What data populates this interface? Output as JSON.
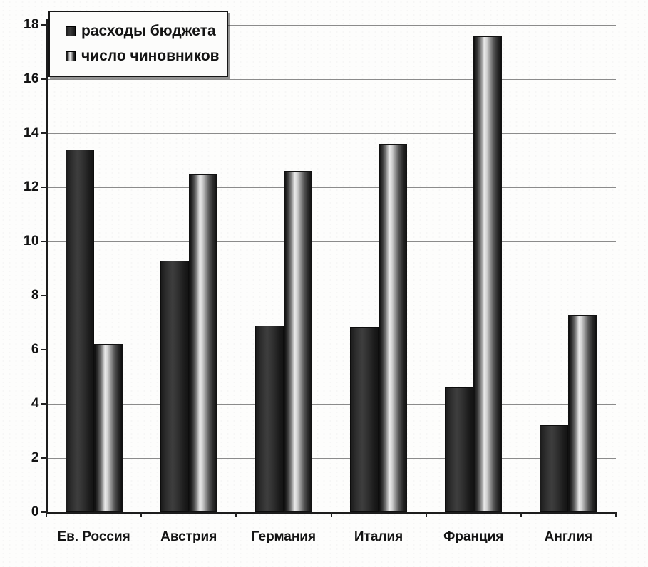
{
  "chart_data": {
    "type": "bar",
    "title": "",
    "xlabel": "",
    "ylabel": "",
    "categories": [
      "Ев. Россия",
      "Австрия",
      "Германия",
      "Италия",
      "Франция",
      "Англия"
    ],
    "series": [
      {
        "name": "расходы бюджета",
        "values": [
          13.4,
          9.3,
          6.9,
          6.85,
          4.6,
          3.2
        ],
        "style": "solid-dark"
      },
      {
        "name": "число чиновников",
        "values": [
          6.2,
          12.5,
          12.6,
          13.6,
          17.6,
          7.3
        ],
        "style": "striped-cylinder"
      }
    ],
    "ylim": [
      0,
      18
    ],
    "y_ticks": [
      0,
      2,
      4,
      6,
      8,
      10,
      12,
      14,
      16,
      18
    ],
    "grid": true,
    "legend_position": "top-left",
    "colors": {
      "bar_dark": "#2d2d2d",
      "bar_striped_edge": "#161616",
      "bar_striped_highlight": "#e9e9e9",
      "gridline": "#777777",
      "axis": "#1c1c1c",
      "text": "#141414",
      "background": "#fdfdfc"
    }
  }
}
